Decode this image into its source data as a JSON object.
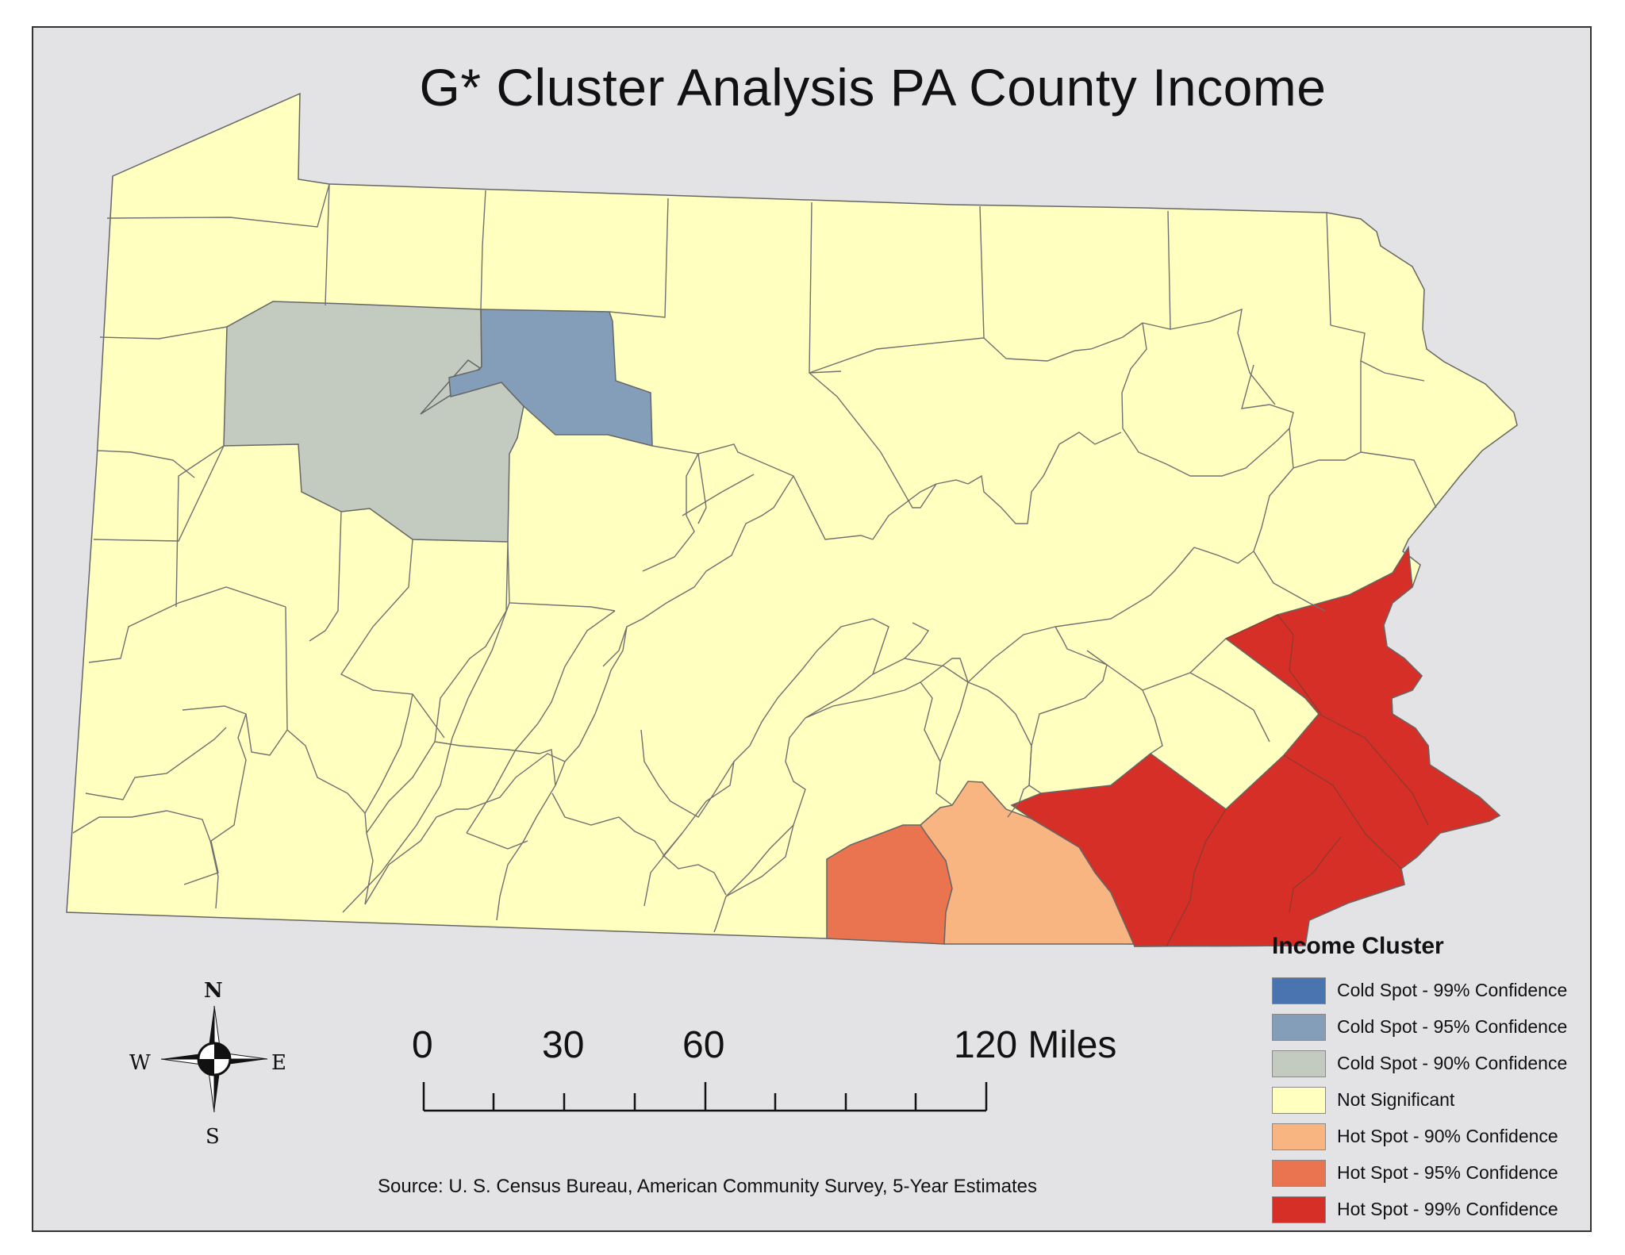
{
  "title": "G* Cluster Analysis PA County Income",
  "legend": {
    "title": "Income Cluster",
    "items": [
      {
        "label": "Cold Spot - 99% Confidence",
        "color": "#4a74b0"
      },
      {
        "label": "Cold Spot - 95% Confidence",
        "color": "#849eba"
      },
      {
        "label": "Cold Spot - 90% Confidence",
        "color": "#c3cbc0"
      },
      {
        "label": "Not Significant",
        "color": "#ffffc0"
      },
      {
        "label": "Hot Spot - 90% Confidence",
        "color": "#f9b581"
      },
      {
        "label": "Hot Spot - 95% Confidence",
        "color": "#ea7450"
      },
      {
        "label": "Hot Spot - 99% Confidence",
        "color": "#d62f27"
      }
    ]
  },
  "scale_bar": {
    "labels": [
      "0",
      "30",
      "60",
      "120 Miles"
    ]
  },
  "compass": {
    "north": "N",
    "south": "S",
    "east": "E",
    "west": "W"
  },
  "source": "Source: U. S. Census Bureau, American Community Survey, 5-Year Estimates"
}
